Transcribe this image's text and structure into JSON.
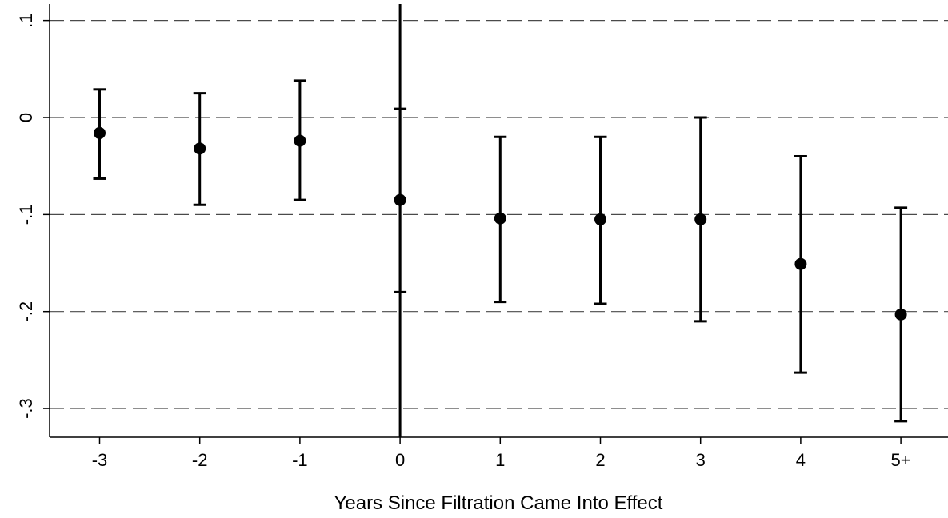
{
  "chart_data": {
    "type": "scatter",
    "subtype": "coefficient plot with 95% confidence intervals",
    "xlabel": "Years Since Filtration Came Into Effect",
    "ylabel": "",
    "categories": [
      "-3",
      "-2",
      "-1",
      "0",
      "1",
      "2",
      "3",
      "4",
      "5+"
    ],
    "estimates": [
      -0.016,
      -0.032,
      -0.024,
      -0.085,
      -0.104,
      -0.105,
      -0.105,
      -0.151,
      -0.203
    ],
    "ci_low": [
      -0.063,
      -0.09,
      -0.085,
      -0.18,
      -0.19,
      -0.192,
      -0.21,
      -0.263,
      -0.313
    ],
    "ci_high": [
      0.029,
      0.025,
      0.038,
      0.009,
      -0.02,
      -0.02,
      0.0,
      -0.04,
      -0.093
    ],
    "ylim": [
      -0.33,
      0.11
    ],
    "yticks": [
      0.1,
      0,
      -0.1,
      -0.2,
      -0.3
    ],
    "ytick_labels": [
      ".1",
      "0",
      "-.1",
      "-.2",
      "-.3"
    ],
    "grid": "horizontal dashed",
    "reference_line_x": "0",
    "marker_color": "#000000",
    "grid_color": "#4a4a4a"
  }
}
